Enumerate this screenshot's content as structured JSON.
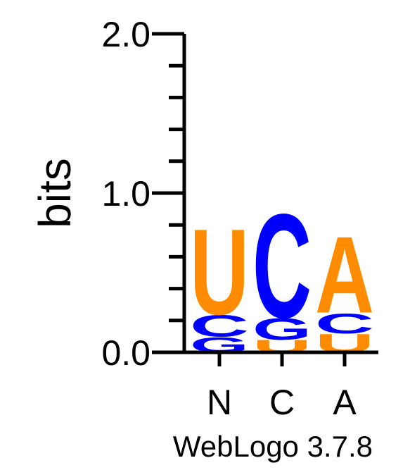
{
  "chart_data": {
    "type": "sequence-logo",
    "ylabel": "bits",
    "ylim": [
      0,
      2
    ],
    "yticks": [
      "0.0",
      "1.0",
      "2.0"
    ],
    "categories": [
      "N",
      "C",
      "A"
    ],
    "colors": {
      "U": "#ff8c00",
      "A": "#ff8c00",
      "C": "#0000ff",
      "G": "#0000ff"
    },
    "stacks": [
      {
        "position": "N",
        "letters": [
          {
            "letter": "G",
            "bits": 0.1
          },
          {
            "letter": "C",
            "bits": 0.14
          },
          {
            "letter": "U",
            "bits": 0.56
          }
        ]
      },
      {
        "position": "C",
        "letters": [
          {
            "letter": "U",
            "bits": 0.08
          },
          {
            "letter": "G",
            "bits": 0.14
          },
          {
            "letter": "C",
            "bits": 0.68
          }
        ]
      },
      {
        "position": "A",
        "letters": [
          {
            "letter": "U",
            "bits": 0.12
          },
          {
            "letter": "C",
            "bits": 0.13
          },
          {
            "letter": "A",
            "bits": 0.5
          }
        ]
      }
    ],
    "footer": "WebLogo 3.7.8"
  }
}
